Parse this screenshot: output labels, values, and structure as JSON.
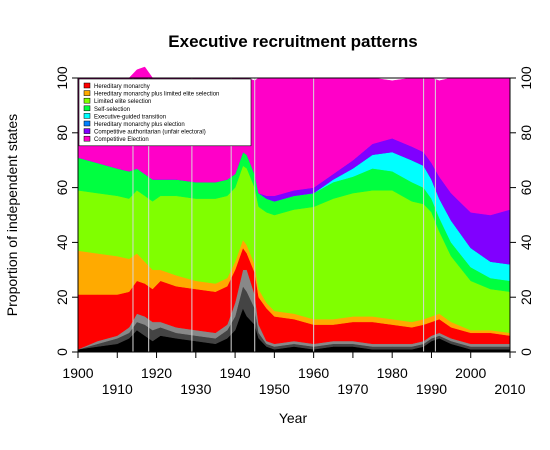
{
  "chart_data": {
    "type": "area",
    "title": "Executive recruitment patterns",
    "xlabel": "Year",
    "ylabel": "Proportion of independent states",
    "xlim": [
      1900,
      2010
    ],
    "ylim": [
      0,
      100
    ],
    "x_ticks_lower": [
      1900,
      1920,
      1940,
      1960,
      1980,
      2000
    ],
    "x_ticks_upper": [
      1910,
      1930,
      1950,
      1970,
      1990,
      2010
    ],
    "y_ticks": [
      0,
      20,
      40,
      60,
      80,
      100
    ],
    "stacked": true,
    "legend_position": "top-left",
    "vertical_reference_lines": [
      1914,
      1918,
      1929,
      1939,
      1945,
      1960,
      1988,
      1991
    ],
    "x": [
      1900,
      1905,
      1910,
      1913,
      1915,
      1917,
      1919,
      1921,
      1925,
      1930,
      1935,
      1938,
      1940,
      1942,
      1943,
      1945,
      1946,
      1948,
      1950,
      1955,
      1960,
      1965,
      1970,
      1975,
      1980,
      1985,
      1988,
      1990,
      1992,
      1995,
      2000,
      2005,
      2010
    ],
    "unlabeled_bottom_layers": [
      {
        "color": "#000000",
        "values": [
          1,
          2,
          3,
          5,
          8,
          6,
          4,
          6,
          5,
          4,
          3,
          5,
          8,
          16,
          13,
          10,
          5,
          2,
          1,
          2,
          1,
          2,
          2,
          1,
          1,
          1,
          2,
          4,
          5,
          3,
          1,
          1,
          1
        ]
      },
      {
        "color": "#444444",
        "values": [
          0,
          1,
          2,
          2,
          3,
          4,
          4,
          3,
          2,
          2,
          2,
          3,
          5,
          8,
          9,
          6,
          2,
          1,
          1,
          1,
          1,
          1,
          1,
          1,
          1,
          1,
          1,
          1,
          1,
          1,
          1,
          1,
          1
        ]
      },
      {
        "color": "#888888",
        "values": [
          0,
          1,
          1,
          2,
          3,
          3,
          3,
          2,
          2,
          2,
          2,
          2,
          5,
          6,
          8,
          5,
          3,
          1,
          1,
          1,
          1,
          1,
          1,
          1,
          1,
          1,
          1,
          1,
          1,
          1,
          1,
          1,
          1
        ]
      }
    ],
    "series": [
      {
        "name": "Hereditary monarchy",
        "color": "#ff0000",
        "values": [
          20,
          17,
          15,
          13,
          12,
          12,
          12,
          15,
          15,
          15,
          15,
          14,
          12,
          8,
          6,
          8,
          10,
          12,
          10,
          8,
          7,
          6,
          7,
          8,
          7,
          6,
          6,
          5,
          5,
          4,
          4,
          4,
          3
        ]
      },
      {
        "name": "Hereditary monarchy plus limited elite selection",
        "color": "#ffaa00",
        "values": [
          16,
          15,
          14,
          12,
          10,
          8,
          7,
          4,
          4,
          3,
          3,
          3,
          3,
          3,
          3,
          3,
          3,
          2,
          2,
          2,
          2,
          2,
          2,
          2,
          2,
          2,
          2,
          2,
          2,
          2,
          1,
          1,
          1
        ]
      },
      {
        "name": "Limited elite selection",
        "color": "#80ff00",
        "values": [
          22,
          22,
          22,
          22,
          23,
          24,
          25,
          27,
          29,
          30,
          31,
          30,
          27,
          27,
          28,
          28,
          30,
          33,
          35,
          38,
          41,
          44,
          45,
          46,
          47,
          44,
          42,
          38,
          30,
          24,
          18,
          15,
          15
        ]
      },
      {
        "name": "Self-selection",
        "color": "#00ff40",
        "values": [
          12,
          11,
          10,
          10,
          8,
          8,
          8,
          6,
          6,
          6,
          6,
          6,
          5,
          5,
          5,
          5,
          5,
          5,
          5,
          5,
          5,
          6,
          6,
          8,
          7,
          7,
          6,
          5,
          5,
          5,
          5,
          4,
          4
        ]
      },
      {
        "name": "Executive-guided transition",
        "color": "#00ffff",
        "values": [
          0,
          0,
          0,
          0,
          0,
          0,
          0,
          0,
          0,
          0,
          0,
          0,
          0,
          0,
          0,
          0,
          0,
          0,
          0,
          0,
          0,
          1,
          3,
          5,
          7,
          8,
          8,
          7,
          7,
          8,
          7,
          6,
          6
        ]
      },
      {
        "name": "Hereditary monarchy plus election",
        "color": "#0080ff",
        "values": [
          0,
          0,
          0,
          0,
          0,
          0,
          0,
          0,
          0,
          0,
          0,
          0,
          0,
          0,
          0,
          0,
          0,
          0,
          0,
          0,
          0,
          0,
          0,
          0,
          0,
          0,
          0,
          0,
          0,
          0,
          0,
          0,
          0
        ]
      },
      {
        "name": "Competitive authoritarian (unfair electoral)",
        "color": "#8000ff",
        "values": [
          0,
          0,
          0,
          0,
          0,
          0,
          0,
          0,
          0,
          0,
          0,
          0,
          0,
          0,
          0,
          0,
          0,
          1,
          2,
          2,
          2,
          2,
          3,
          4,
          5,
          5,
          5,
          6,
          8,
          10,
          13,
          17,
          20
        ]
      },
      {
        "name": "Competitive Election",
        "color": "#ff00c8",
        "values": [
          29,
          31,
          33,
          34,
          36,
          39,
          37,
          37,
          37,
          38,
          38,
          37,
          35,
          27,
          28,
          34,
          42,
          43,
          43,
          41,
          40,
          35,
          30,
          24,
          21,
          25,
          27,
          31,
          35,
          42,
          49,
          50,
          48
        ]
      }
    ]
  }
}
